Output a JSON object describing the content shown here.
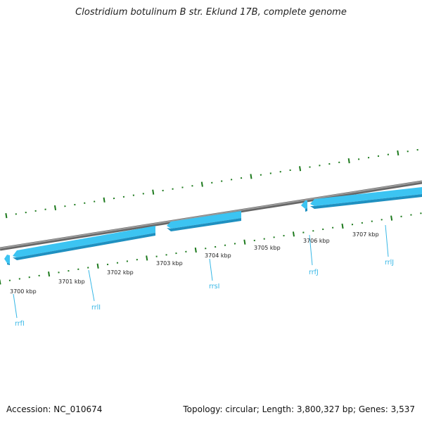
{
  "title": "Clostridium botulinum B str. Eklund 17B, complete genome",
  "footer": {
    "accession": "Accession: NC_010674",
    "summary": "Topology: circular; Length: 3,800,327 bp; Genes: 3,537"
  },
  "colors": {
    "backbone": "#8a8a8a",
    "gene": "#3cc4f2",
    "gene_dark": "#1f90c0",
    "tick": "#1d7a1d",
    "label": "#36b7e6"
  },
  "ticks": [
    "3700 kbp",
    "3701 kbp",
    "3702 kbp",
    "3703 kbp",
    "3704 kbp",
    "3705 kbp",
    "3706 kbp",
    "3707 kbp"
  ],
  "genes": [
    {
      "name": "rrfI",
      "strand": "-"
    },
    {
      "name": "rrlI",
      "strand": "-"
    },
    {
      "name": "rrsI",
      "strand": "-"
    },
    {
      "name": "rrfJ",
      "strand": "-"
    },
    {
      "name": "rrlJ",
      "strand": "-"
    }
  ]
}
